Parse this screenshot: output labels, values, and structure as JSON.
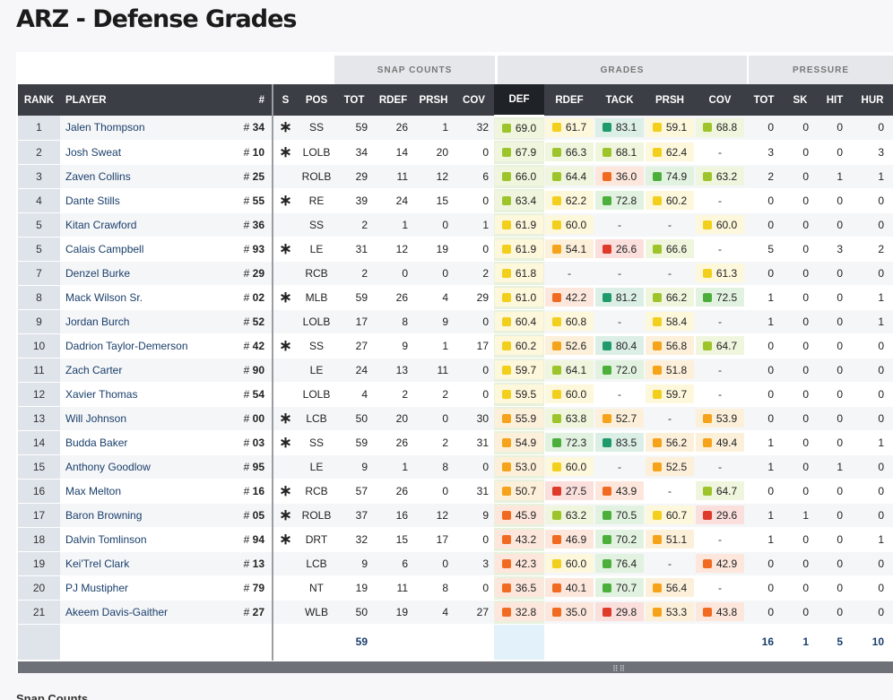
{
  "page": {
    "title": "ARZ - Defense Grades",
    "below_text": "Snap Counts"
  },
  "groups": {
    "snap": "SNAP COUNTS",
    "grades": "GRADES",
    "pressure": "PRESSURE"
  },
  "columns": {
    "rank": "RANK",
    "player": "PLAYER",
    "num": "#",
    "s": "S",
    "pos": "POS",
    "tot": "TOT",
    "rdef": "RDEF",
    "prsh": "PRSH",
    "cov": "COV",
    "def": "DEF",
    "g_rdef": "RDEF",
    "g_tack": "TACK",
    "g_prsh": "PRSH",
    "g_cov": "COV",
    "p_tot": "TOT",
    "p_sk": "SK",
    "p_hit": "HIT",
    "p_hur": "HUR"
  },
  "grade_colors": {
    "high": "#1f9a6a",
    "good": "#4caf3c",
    "above": "#9dc42a",
    "avg": "#f2cf1c",
    "below": "#f5a31a",
    "low": "#f06a22",
    "poor": "#de3a2a"
  },
  "rows": [
    {
      "rank": "1",
      "player": "Jalen Thompson",
      "num": "34",
      "s": "*",
      "pos": "SS",
      "tot": "59",
      "rdef": "26",
      "prsh": "1",
      "cov": "32",
      "def": "69.0",
      "g_rdef": "61.7",
      "g_tack": "83.1",
      "g_prsh": "59.1",
      "g_cov": "68.8",
      "p_tot": "0",
      "p_sk": "0",
      "p_hit": "0",
      "p_hur": "0"
    },
    {
      "rank": "2",
      "player": "Josh Sweat",
      "num": "10",
      "s": "*",
      "pos": "LOLB",
      "tot": "34",
      "rdef": "14",
      "prsh": "20",
      "cov": "0",
      "def": "67.9",
      "g_rdef": "66.3",
      "g_tack": "68.1",
      "g_prsh": "62.4",
      "g_cov": "-",
      "p_tot": "3",
      "p_sk": "0",
      "p_hit": "0",
      "p_hur": "3"
    },
    {
      "rank": "3",
      "player": "Zaven Collins",
      "num": "25",
      "s": "",
      "pos": "ROLB",
      "tot": "29",
      "rdef": "11",
      "prsh": "12",
      "cov": "6",
      "def": "66.0",
      "g_rdef": "64.4",
      "g_tack": "36.0",
      "g_prsh": "74.9",
      "g_cov": "63.2",
      "p_tot": "2",
      "p_sk": "0",
      "p_hit": "1",
      "p_hur": "1"
    },
    {
      "rank": "4",
      "player": "Dante Stills",
      "num": "55",
      "s": "*",
      "pos": "RE",
      "tot": "39",
      "rdef": "24",
      "prsh": "15",
      "cov": "0",
      "def": "63.4",
      "g_rdef": "62.2",
      "g_tack": "72.8",
      "g_prsh": "60.2",
      "g_cov": "-",
      "p_tot": "0",
      "p_sk": "0",
      "p_hit": "0",
      "p_hur": "0"
    },
    {
      "rank": "5",
      "player": "Kitan Crawford",
      "num": "36",
      "s": "",
      "pos": "SS",
      "tot": "2",
      "rdef": "1",
      "prsh": "0",
      "cov": "1",
      "def": "61.9",
      "g_rdef": "60.0",
      "g_tack": "-",
      "g_prsh": "-",
      "g_cov": "60.0",
      "p_tot": "0",
      "p_sk": "0",
      "p_hit": "0",
      "p_hur": "0"
    },
    {
      "rank": "5",
      "player": "Calais Campbell",
      "num": "93",
      "s": "*",
      "pos": "LE",
      "tot": "31",
      "rdef": "12",
      "prsh": "19",
      "cov": "0",
      "def": "61.9",
      "g_rdef": "54.1",
      "g_tack": "26.6",
      "g_prsh": "66.6",
      "g_cov": "-",
      "p_tot": "5",
      "p_sk": "0",
      "p_hit": "3",
      "p_hur": "2"
    },
    {
      "rank": "7",
      "player": "Denzel Burke",
      "num": "29",
      "s": "",
      "pos": "RCB",
      "tot": "2",
      "rdef": "0",
      "prsh": "0",
      "cov": "2",
      "def": "61.8",
      "g_rdef": "-",
      "g_tack": "-",
      "g_prsh": "-",
      "g_cov": "61.3",
      "p_tot": "0",
      "p_sk": "0",
      "p_hit": "0",
      "p_hur": "0"
    },
    {
      "rank": "8",
      "player": "Mack Wilson Sr.",
      "num": "02",
      "s": "*",
      "pos": "MLB",
      "tot": "59",
      "rdef": "26",
      "prsh": "4",
      "cov": "29",
      "def": "61.0",
      "g_rdef": "42.2",
      "g_tack": "81.2",
      "g_prsh": "66.2",
      "g_cov": "72.5",
      "p_tot": "1",
      "p_sk": "0",
      "p_hit": "0",
      "p_hur": "1"
    },
    {
      "rank": "9",
      "player": "Jordan Burch",
      "num": "52",
      "s": "",
      "pos": "LOLB",
      "tot": "17",
      "rdef": "8",
      "prsh": "9",
      "cov": "0",
      "def": "60.4",
      "g_rdef": "60.8",
      "g_tack": "-",
      "g_prsh": "58.4",
      "g_cov": "-",
      "p_tot": "1",
      "p_sk": "0",
      "p_hit": "0",
      "p_hur": "1"
    },
    {
      "rank": "10",
      "player": "Dadrion Taylor-Demerson",
      "num": "42",
      "s": "*",
      "pos": "SS",
      "tot": "27",
      "rdef": "9",
      "prsh": "1",
      "cov": "17",
      "def": "60.2",
      "g_rdef": "52.6",
      "g_tack": "80.4",
      "g_prsh": "56.8",
      "g_cov": "64.7",
      "p_tot": "0",
      "p_sk": "0",
      "p_hit": "0",
      "p_hur": "0"
    },
    {
      "rank": "11",
      "player": "Zach Carter",
      "num": "90",
      "s": "",
      "pos": "LE",
      "tot": "24",
      "rdef": "13",
      "prsh": "11",
      "cov": "0",
      "def": "59.7",
      "g_rdef": "64.1",
      "g_tack": "72.0",
      "g_prsh": "51.8",
      "g_cov": "-",
      "p_tot": "0",
      "p_sk": "0",
      "p_hit": "0",
      "p_hur": "0"
    },
    {
      "rank": "12",
      "player": "Xavier Thomas",
      "num": "54",
      "s": "",
      "pos": "LOLB",
      "tot": "4",
      "rdef": "2",
      "prsh": "2",
      "cov": "0",
      "def": "59.5",
      "g_rdef": "60.0",
      "g_tack": "-",
      "g_prsh": "59.7",
      "g_cov": "-",
      "p_tot": "0",
      "p_sk": "0",
      "p_hit": "0",
      "p_hur": "0"
    },
    {
      "rank": "13",
      "player": "Will Johnson",
      "num": "00",
      "s": "*",
      "pos": "LCB",
      "tot": "50",
      "rdef": "20",
      "prsh": "0",
      "cov": "30",
      "def": "55.9",
      "g_rdef": "63.8",
      "g_tack": "52.7",
      "g_prsh": "-",
      "g_cov": "53.9",
      "p_tot": "0",
      "p_sk": "0",
      "p_hit": "0",
      "p_hur": "0"
    },
    {
      "rank": "14",
      "player": "Budda Baker",
      "num": "03",
      "s": "*",
      "pos": "SS",
      "tot": "59",
      "rdef": "26",
      "prsh": "2",
      "cov": "31",
      "def": "54.9",
      "g_rdef": "72.3",
      "g_tack": "83.5",
      "g_prsh": "56.2",
      "g_cov": "49.4",
      "p_tot": "1",
      "p_sk": "0",
      "p_hit": "0",
      "p_hur": "1"
    },
    {
      "rank": "15",
      "player": "Anthony Goodlow",
      "num": "95",
      "s": "",
      "pos": "LE",
      "tot": "9",
      "rdef": "1",
      "prsh": "8",
      "cov": "0",
      "def": "53.0",
      "g_rdef": "60.0",
      "g_tack": "-",
      "g_prsh": "52.5",
      "g_cov": "-",
      "p_tot": "1",
      "p_sk": "0",
      "p_hit": "1",
      "p_hur": "0"
    },
    {
      "rank": "16",
      "player": "Max Melton",
      "num": "16",
      "s": "*",
      "pos": "RCB",
      "tot": "57",
      "rdef": "26",
      "prsh": "0",
      "cov": "31",
      "def": "50.7",
      "g_rdef": "27.5",
      "g_tack": "43.9",
      "g_prsh": "-",
      "g_cov": "64.7",
      "p_tot": "0",
      "p_sk": "0",
      "p_hit": "0",
      "p_hur": "0"
    },
    {
      "rank": "17",
      "player": "Baron Browning",
      "num": "05",
      "s": "*",
      "pos": "ROLB",
      "tot": "37",
      "rdef": "16",
      "prsh": "12",
      "cov": "9",
      "def": "45.9",
      "g_rdef": "63.2",
      "g_tack": "70.5",
      "g_prsh": "60.7",
      "g_cov": "29.6",
      "p_tot": "1",
      "p_sk": "1",
      "p_hit": "0",
      "p_hur": "0"
    },
    {
      "rank": "18",
      "player": "Dalvin Tomlinson",
      "num": "94",
      "s": "*",
      "pos": "DRT",
      "tot": "32",
      "rdef": "15",
      "prsh": "17",
      "cov": "0",
      "def": "43.2",
      "g_rdef": "46.9",
      "g_tack": "70.2",
      "g_prsh": "51.1",
      "g_cov": "-",
      "p_tot": "1",
      "p_sk": "0",
      "p_hit": "0",
      "p_hur": "1"
    },
    {
      "rank": "19",
      "player": "Kei'Trel Clark",
      "num": "13",
      "s": "",
      "pos": "LCB",
      "tot": "9",
      "rdef": "6",
      "prsh": "0",
      "cov": "3",
      "def": "42.3",
      "g_rdef": "60.0",
      "g_tack": "76.4",
      "g_prsh": "-",
      "g_cov": "42.9",
      "p_tot": "0",
      "p_sk": "0",
      "p_hit": "0",
      "p_hur": "0"
    },
    {
      "rank": "20",
      "player": "PJ Mustipher",
      "num": "79",
      "s": "",
      "pos": "NT",
      "tot": "19",
      "rdef": "11",
      "prsh": "8",
      "cov": "0",
      "def": "36.5",
      "g_rdef": "40.1",
      "g_tack": "70.7",
      "g_prsh": "56.4",
      "g_cov": "-",
      "p_tot": "0",
      "p_sk": "0",
      "p_hit": "0",
      "p_hur": "0"
    },
    {
      "rank": "21",
      "player": "Akeem Davis-Gaither",
      "num": "27",
      "s": "",
      "pos": "WLB",
      "tot": "50",
      "rdef": "19",
      "prsh": "4",
      "cov": "27",
      "def": "32.8",
      "g_rdef": "35.0",
      "g_tack": "29.8",
      "g_prsh": "53.3",
      "g_cov": "43.8",
      "p_tot": "0",
      "p_sk": "0",
      "p_hit": "0",
      "p_hur": "0"
    }
  ],
  "footer": {
    "tot": "59",
    "p_tot": "16",
    "p_sk": "1",
    "p_hit": "5",
    "p_hur": "10"
  }
}
